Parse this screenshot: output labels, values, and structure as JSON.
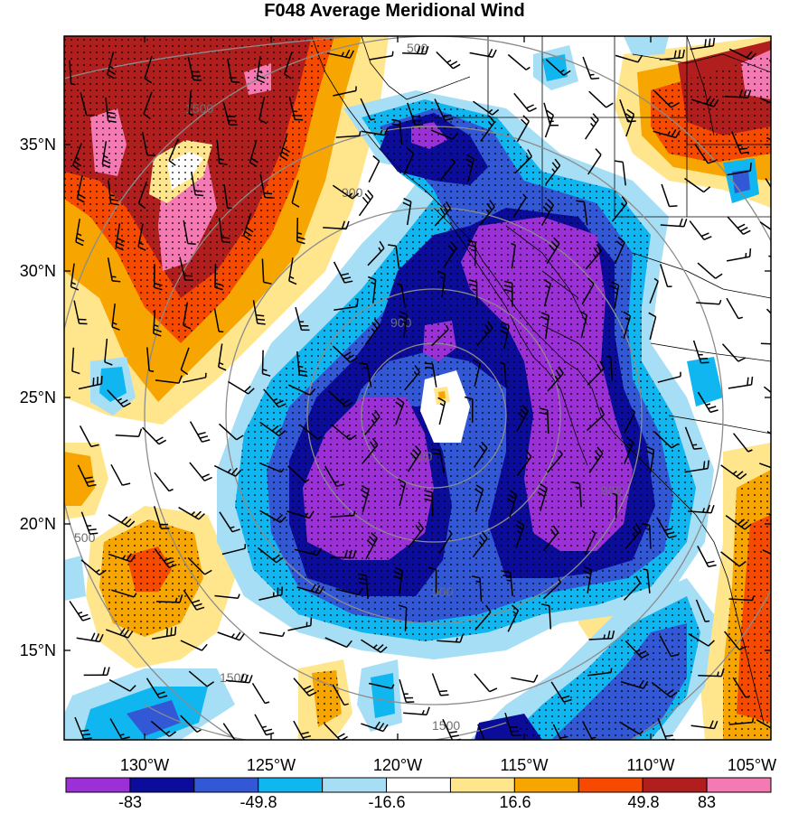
{
  "title": "F048 Average Meridional Wind",
  "lat_labels": [
    "35°N",
    "30°N",
    "25°N",
    "20°N",
    "15°N"
  ],
  "lon_labels": [
    "130°W",
    "125°W",
    "120°W",
    "115°W",
    "110°W",
    "105°W"
  ],
  "colorbar": {
    "colors": [
      "#9b30d6",
      "#0c0c9a",
      "#3358d6",
      "#10b6f0",
      "#a6def5",
      "#ffffff",
      "#ffe58c",
      "#f7a500",
      "#f54a00",
      "#b01e1e",
      "#f57ab4"
    ],
    "tick_labels": [
      "-83",
      "-49.8",
      "-16.6",
      "16.6",
      "49.8",
      "83"
    ]
  },
  "contour_labels": [
    "500",
    "1500",
    "900",
    "900",
    "900",
    "900",
    "500",
    "1500",
    "1500",
    "900"
  ]
}
